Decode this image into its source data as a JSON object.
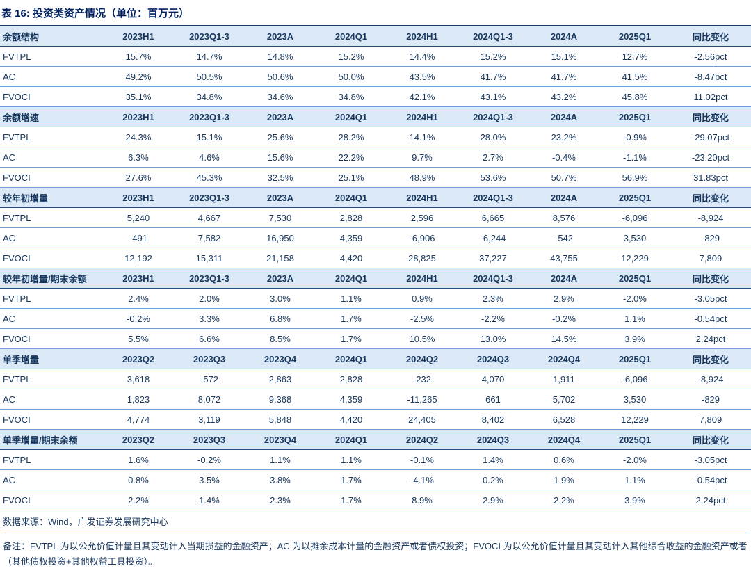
{
  "title": {
    "text": "表 16: 投资类资产情况（单位：百万元）"
  },
  "accent_colors": {
    "text_navy": "#17375E",
    "title_navy": "#002060",
    "header_bg": "#DBE8F6",
    "rule_dark": "#1F4E79",
    "rule_light": "#6FA0D0"
  },
  "table": {
    "sections": [
      {
        "label": "余额结构",
        "columns": [
          "2023H1",
          "2023Q1-3",
          "2023A",
          "2024Q1",
          "2024H1",
          "2024Q1-3",
          "2024A",
          "2025Q1",
          "同比变化"
        ],
        "rows": [
          {
            "name": "FVTPL",
            "values": [
              "15.7%",
              "14.7%",
              "14.8%",
              "15.2%",
              "14.4%",
              "15.2%",
              "15.1%",
              "12.7%",
              "-2.56pct"
            ]
          },
          {
            "name": "AC",
            "values": [
              "49.2%",
              "50.5%",
              "50.6%",
              "50.0%",
              "43.5%",
              "41.7%",
              "41.7%",
              "41.5%",
              "-8.47pct"
            ]
          },
          {
            "name": "FVOCI",
            "values": [
              "35.1%",
              "34.8%",
              "34.6%",
              "34.8%",
              "42.1%",
              "43.1%",
              "43.2%",
              "45.8%",
              "11.02pct"
            ]
          }
        ]
      },
      {
        "label": "余额增速",
        "columns": [
          "2023H1",
          "2023Q1-3",
          "2023A",
          "2024Q1",
          "2024H1",
          "2024Q1-3",
          "2024A",
          "2025Q1",
          "同比变化"
        ],
        "rows": [
          {
            "name": "FVTPL",
            "values": [
              "24.3%",
              "15.1%",
              "25.6%",
              "28.2%",
              "14.1%",
              "28.0%",
              "23.2%",
              "-0.9%",
              "-29.07pct"
            ]
          },
          {
            "name": "AC",
            "values": [
              "6.3%",
              "4.6%",
              "15.6%",
              "22.2%",
              "9.7%",
              "2.7%",
              "-0.4%",
              "-1.1%",
              "-23.20pct"
            ]
          },
          {
            "name": "FVOCI",
            "values": [
              "27.6%",
              "45.3%",
              "32.5%",
              "25.1%",
              "48.9%",
              "53.6%",
              "50.7%",
              "56.9%",
              "31.83pct"
            ]
          }
        ]
      },
      {
        "label": "较年初增量",
        "columns": [
          "2023H1",
          "2023Q1-3",
          "2023A",
          "2024Q1",
          "2024H1",
          "2024Q1-3",
          "2024A",
          "2025Q1",
          "同比变化"
        ],
        "rows": [
          {
            "name": "FVTPL",
            "values": [
              "5,240",
              "4,667",
              "7,530",
              "2,828",
              "2,596",
              "6,665",
              "8,576",
              "-6,096",
              "-8,924"
            ]
          },
          {
            "name": "AC",
            "values": [
              "-491",
              "7,582",
              "16,950",
              "4,359",
              "-6,906",
              "-6,244",
              "-542",
              "3,530",
              "-829"
            ]
          },
          {
            "name": "FVOCI",
            "values": [
              "12,192",
              "15,311",
              "21,158",
              "4,420",
              "28,825",
              "37,227",
              "43,755",
              "12,229",
              "7,809"
            ]
          }
        ]
      },
      {
        "label": "较年初增量/期末余额",
        "columns": [
          "2023H1",
          "2023Q1-3",
          "2023A",
          "2024Q1",
          "2024H1",
          "2024Q1-3",
          "2024A",
          "2025Q1",
          "同比变化"
        ],
        "rows": [
          {
            "name": "FVTPL",
            "values": [
              "2.4%",
              "2.0%",
              "3.0%",
              "1.1%",
              "0.9%",
              "2.3%",
              "2.9%",
              "-2.0%",
              "-3.05pct"
            ]
          },
          {
            "name": "AC",
            "values": [
              "-0.2%",
              "3.3%",
              "6.8%",
              "1.7%",
              "-2.5%",
              "-2.2%",
              "-0.2%",
              "1.1%",
              "-0.54pct"
            ]
          },
          {
            "name": "FVOCI",
            "values": [
              "5.5%",
              "6.6%",
              "8.5%",
              "1.7%",
              "10.5%",
              "13.0%",
              "14.5%",
              "3.9%",
              "2.24pct"
            ]
          }
        ]
      },
      {
        "label": "单季增量",
        "columns": [
          "2023Q2",
          "2023Q3",
          "2023Q4",
          "2024Q1",
          "2024Q2",
          "2024Q3",
          "2024Q4",
          "2025Q1",
          "同比变化"
        ],
        "rows": [
          {
            "name": "FVTPL",
            "values": [
              "3,618",
              "-572",
              "2,863",
              "2,828",
              "-232",
              "4,070",
              "1,911",
              "-6,096",
              "-8,924"
            ]
          },
          {
            "name": "AC",
            "values": [
              "1,823",
              "8,072",
              "9,368",
              "4,359",
              "-11,265",
              "661",
              "5,702",
              "3,530",
              "-829"
            ]
          },
          {
            "name": "FVOCI",
            "values": [
              "4,774",
              "3,119",
              "5,848",
              "4,420",
              "24,405",
              "8,402",
              "6,528",
              "12,229",
              "7,809"
            ]
          }
        ]
      },
      {
        "label": "单季增量/期末余额",
        "columns": [
          "2023Q2",
          "2023Q3",
          "2023Q4",
          "2024Q1",
          "2024Q2",
          "2024Q3",
          "2024Q4",
          "2025Q1",
          "同比变化"
        ],
        "rows": [
          {
            "name": "FVTPL",
            "values": [
              "1.6%",
              "-0.2%",
              "1.1%",
              "1.1%",
              "-0.1%",
              "1.4%",
              "0.6%",
              "-2.0%",
              "-3.05pct"
            ]
          },
          {
            "name": "AC",
            "values": [
              "0.8%",
              "3.5%",
              "3.8%",
              "1.7%",
              "-4.1%",
              "0.2%",
              "1.9%",
              "1.1%",
              "-0.54pct"
            ]
          },
          {
            "name": "FVOCI",
            "values": [
              "2.2%",
              "1.4%",
              "2.3%",
              "1.7%",
              "8.9%",
              "2.9%",
              "2.2%",
              "3.9%",
              "2.24pct"
            ]
          }
        ]
      }
    ]
  },
  "footer": {
    "source": "数据来源：Wind，广发证券发展研究中心",
    "note": "备注：FVTPL 为以公允价值计量且其变动计入当期损益的金融资产；AC 为以摊余成本计量的金融资产或者债权投资；FVOCI 为以公允价值计量且其变动计入其他综合收益的金融资产或者（其他债权投资+其他权益工具投资）。"
  }
}
